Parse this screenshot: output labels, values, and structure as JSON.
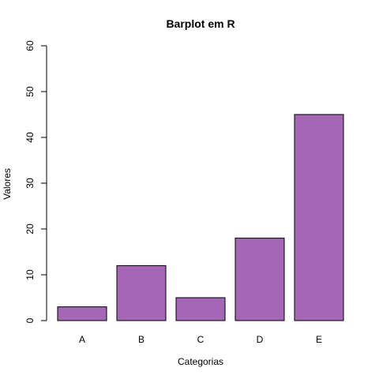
{
  "colors": {
    "bar_fill": "#a566b6",
    "bar_stroke": "#000000"
  },
  "chart_data": {
    "type": "bar",
    "title": "Barplot em R",
    "xlabel": "Categorias",
    "ylabel": "Valores",
    "categories": [
      "A",
      "B",
      "C",
      "D",
      "E"
    ],
    "values": [
      3,
      12,
      5,
      18,
      45
    ],
    "ylim": [
      0,
      60
    ],
    "yticks": [
      0,
      10,
      20,
      30,
      40,
      50,
      60
    ],
    "grid": false,
    "legend": "none"
  }
}
